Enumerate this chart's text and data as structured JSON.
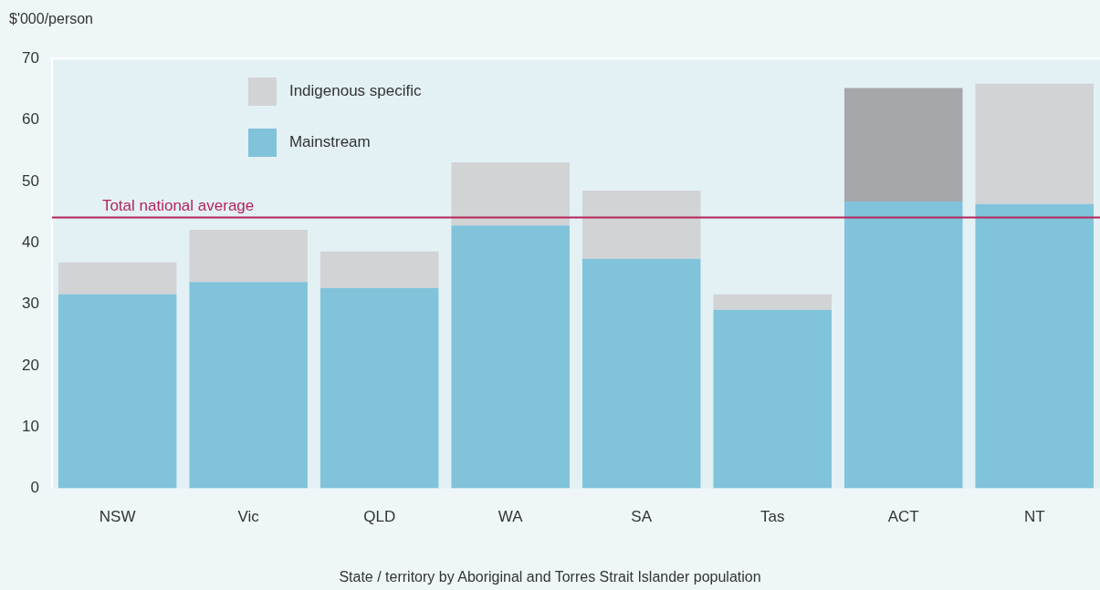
{
  "chart_data": {
    "type": "bar",
    "stacked": true,
    "ylabel": "$'000/person",
    "xlabel": "State / territory by Aboriginal and Torres Strait Islander population",
    "categories": [
      "NSW",
      "Vic",
      "QLD",
      "WA",
      "SA",
      "Tas",
      "ACT",
      "NT"
    ],
    "series": [
      {
        "name": "Mainstream",
        "color": "#80c3da",
        "values": [
          31.6,
          33.6,
          32.6,
          42.8,
          37.4,
          29.1,
          46.7,
          46.3
        ]
      },
      {
        "name": "Indigenous specific",
        "color": "#d2d3d5",
        "colors": [
          "#d2d3d5",
          "#d2d3d5",
          "#d2d3d5",
          "#d2d3d5",
          "#d2d3d5",
          "#d2d3d5",
          "#a6a7a9",
          "#d2d3d5"
        ],
        "values": [
          5.2,
          8.5,
          6.0,
          10.3,
          11.1,
          2.5,
          18.5,
          19.6
        ]
      }
    ],
    "ylim": [
      0,
      70
    ],
    "yticks": [
      0,
      10,
      20,
      30,
      40,
      50,
      60,
      70
    ],
    "grid": false,
    "legend": "top left",
    "ref_lines": [
      {
        "axis": "y",
        "value": 44.1,
        "label": "Total national average",
        "color": "#b5245a"
      }
    ]
  }
}
